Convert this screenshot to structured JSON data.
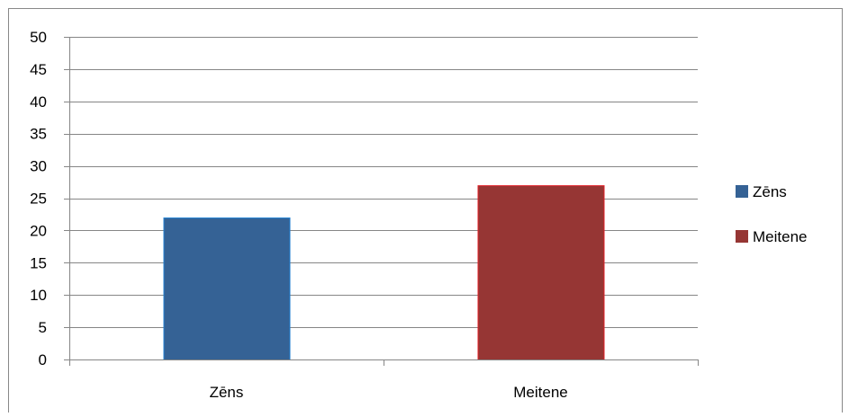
{
  "chart_data": {
    "type": "bar",
    "categories": [
      "Zēns",
      "Meitene"
    ],
    "values": [
      22,
      27
    ],
    "colors": [
      "#356295",
      "#963634"
    ],
    "border_colors": [
      "#1f7fd1",
      "#e01e24"
    ],
    "ylim": [
      0,
      50
    ],
    "y_ticks": [
      "0",
      "5",
      "10",
      "15",
      "20",
      "25",
      "30",
      "35",
      "40",
      "45",
      "50"
    ],
    "y_tick_values": [
      0,
      5,
      10,
      15,
      20,
      25,
      30,
      35,
      40,
      45,
      50
    ],
    "grid": true,
    "legend_position": "right",
    "legend": [
      {
        "label": "Zēns",
        "color": "#356295"
      },
      {
        "label": "Meitene",
        "color": "#963634"
      }
    ],
    "title": "",
    "xlabel": "",
    "ylabel": ""
  }
}
